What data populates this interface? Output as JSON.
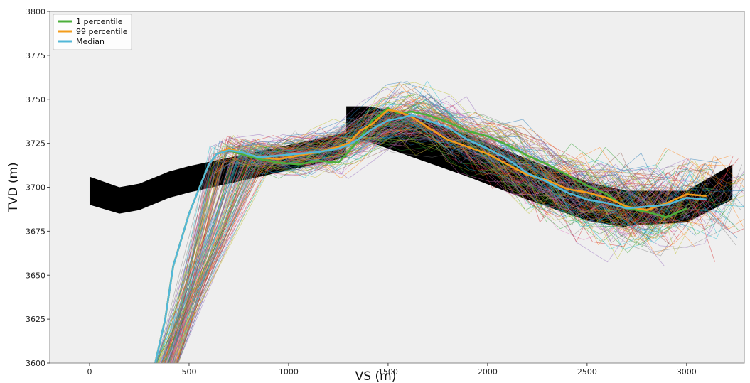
{
  "chart_data": {
    "type": "line",
    "xlabel": "VS (m)",
    "ylabel": "TVD (m)",
    "xlim": [
      -200,
      3290
    ],
    "ylim": [
      3800,
      3600
    ],
    "y_inverted": true,
    "grid": false,
    "x_ticks": [
      0,
      500,
      1000,
      1500,
      2000,
      2500,
      3000
    ],
    "y_ticks": [
      3600,
      3625,
      3650,
      3675,
      3700,
      3725,
      3750,
      3775,
      3800
    ],
    "legend": {
      "placement": "top-left"
    },
    "colors": {
      "p1": "#4caf3a",
      "p99": "#f39c1a",
      "median": "#52b8d8",
      "zone": "#000000",
      "background": "#efefef"
    },
    "target_zone": {
      "x": [
        0,
        150,
        250,
        400,
        500,
        1290,
        1290,
        1400,
        1600,
        1900,
        2200,
        2500,
        2700,
        2700,
        3000,
        3230
      ],
      "top": [
        3690,
        3685,
        3687,
        3694,
        3697,
        3717,
        3728,
        3726,
        3718,
        3706,
        3693,
        3681,
        3677,
        3678,
        3680,
        3693
      ],
      "bottom": [
        3706,
        3700,
        3702,
        3709,
        3712,
        3731,
        3746,
        3746,
        3742,
        3730,
        3716,
        3703,
        3698,
        3698,
        3698,
        3713
      ]
    },
    "series": [
      {
        "name": "1 percentile",
        "color": "#4caf3a",
        "x": [
          330,
          380,
          420,
          500,
          560,
          600,
          640,
          700,
          760,
          850,
          950,
          1050,
          1150,
          1250,
          1300,
          1360,
          1420,
          1500,
          1550,
          1620,
          1700,
          1800,
          1900,
          2000,
          2100,
          2200,
          2300,
          2400,
          2500,
          2600,
          2700,
          2800,
          2900,
          3000
        ],
        "y": [
          3600,
          3625,
          3655,
          3685,
          3702,
          3713,
          3719,
          3721,
          3719,
          3716,
          3714,
          3713,
          3715,
          3714,
          3720,
          3728,
          3738,
          3745,
          3742,
          3743,
          3741,
          3737,
          3732,
          3729,
          3724,
          3718,
          3713,
          3707,
          3701,
          3696,
          3688,
          3686,
          3683,
          3688
        ]
      },
      {
        "name": "99 percentile",
        "color": "#f39c1a",
        "x": [
          330,
          380,
          420,
          500,
          560,
          600,
          640,
          700,
          760,
          850,
          950,
          1050,
          1150,
          1250,
          1300,
          1360,
          1420,
          1500,
          1550,
          1620,
          1700,
          1800,
          1900,
          2000,
          2100,
          2200,
          2300,
          2400,
          2500,
          2600,
          2700,
          2800,
          2900,
          3000,
          3100
        ],
        "y": [
          3600,
          3625,
          3655,
          3685,
          3702,
          3713,
          3719,
          3722,
          3720,
          3717,
          3716,
          3718,
          3720,
          3723,
          3725,
          3732,
          3736,
          3744,
          3743,
          3740,
          3734,
          3727,
          3723,
          3719,
          3713,
          3707,
          3704,
          3699,
          3697,
          3694,
          3689,
          3687,
          3691,
          3696,
          3695
        ]
      },
      {
        "name": "Median",
        "color": "#52b8d8",
        "x": [
          330,
          380,
          420,
          500,
          560,
          600,
          640,
          700,
          760,
          850,
          950,
          1050,
          1150,
          1250,
          1300,
          1360,
          1420,
          1500,
          1550,
          1620,
          1700,
          1800,
          1900,
          2000,
          2100,
          2200,
          2300,
          2400,
          2500,
          2600,
          2700,
          2800,
          2900,
          3000,
          3100
        ],
        "y": [
          3600,
          3625,
          3655,
          3685,
          3702,
          3713,
          3719,
          3721,
          3720,
          3717,
          3718,
          3719,
          3720,
          3722,
          3724,
          3728,
          3733,
          3738,
          3739,
          3741,
          3738,
          3734,
          3727,
          3722,
          3716,
          3708,
          3703,
          3697,
          3693,
          3691,
          3688,
          3689,
          3690,
          3694,
          3693
        ]
      }
    ]
  }
}
